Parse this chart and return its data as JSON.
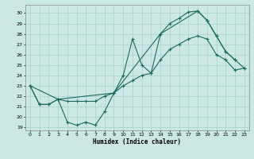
{
  "background_color": "#cce8e4",
  "grid_color": "#aacfcb",
  "line_color": "#1a6b5a",
  "xlabel": "Humidex (Indice chaleur)",
  "x_ticks": [
    0,
    1,
    2,
    3,
    4,
    5,
    6,
    7,
    8,
    9,
    10,
    11,
    12,
    13,
    14,
    15,
    16,
    17,
    18,
    19,
    20,
    21,
    22,
    23
  ],
  "y_ticks": [
    19,
    20,
    21,
    22,
    23,
    24,
    25,
    26,
    27,
    28,
    29,
    30
  ],
  "xlim": [
    -0.5,
    23.5
  ],
  "ylim": [
    18.7,
    30.8
  ],
  "line1_x": [
    0,
    1,
    2,
    3,
    4,
    5,
    6,
    7,
    8,
    9,
    10,
    11,
    12,
    13,
    14,
    15,
    16,
    17,
    18,
    19,
    20,
    21,
    22
  ],
  "line1_y": [
    23.0,
    21.2,
    21.2,
    21.7,
    19.5,
    19.2,
    19.5,
    19.2,
    20.5,
    22.3,
    24.0,
    27.5,
    25.0,
    24.2,
    28.0,
    29.0,
    29.5,
    30.1,
    30.2,
    29.3,
    27.8,
    26.3,
    25.5
  ],
  "line2_x": [
    0,
    1,
    2,
    3,
    4,
    5,
    6,
    7,
    8,
    9,
    10,
    11,
    12,
    13,
    14,
    15,
    16,
    17,
    18,
    19,
    20,
    21,
    22,
    23
  ],
  "line2_y": [
    23.0,
    21.2,
    21.2,
    21.7,
    21.5,
    21.5,
    21.5,
    21.5,
    22.0,
    22.3,
    23.0,
    23.5,
    24.0,
    24.2,
    25.5,
    26.5,
    27.0,
    27.5,
    27.8,
    27.5,
    26.0,
    25.5,
    24.5,
    24.7
  ],
  "line3_x": [
    0,
    3,
    9,
    14,
    18,
    19,
    20,
    21,
    22,
    23
  ],
  "line3_y": [
    23.0,
    21.7,
    22.3,
    28.0,
    30.2,
    29.3,
    27.8,
    26.3,
    25.5,
    24.7
  ]
}
